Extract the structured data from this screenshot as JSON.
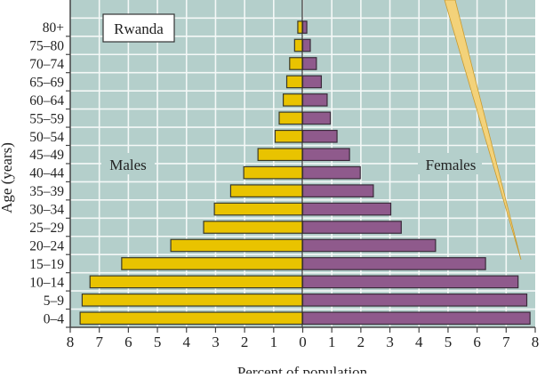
{
  "chart_data": {
    "type": "bar",
    "orientation": "horizontal-population-pyramid",
    "title": "Rwanda",
    "xlabel": "Percent of population",
    "ylabel": "Age (years)",
    "categories": [
      "0–4",
      "5–9",
      "10–14",
      "15–19",
      "20–24",
      "25–29",
      "30–34",
      "35–39",
      "40–44",
      "45–49",
      "50–54",
      "55–59",
      "60–64",
      "65–69",
      "70–74",
      "75–80",
      "80+"
    ],
    "series": [
      {
        "name": "Males",
        "side": "left",
        "color": "#e9c300",
        "values": [
          7.66,
          7.59,
          7.32,
          6.23,
          4.54,
          3.41,
          3.04,
          2.48,
          2.03,
          1.54,
          0.95,
          0.81,
          0.67,
          0.55,
          0.45,
          0.28,
          0.17
        ]
      },
      {
        "name": "Females",
        "side": "right",
        "color": "#8f5a8c",
        "values": [
          7.82,
          7.71,
          7.41,
          6.29,
          4.57,
          3.39,
          3.03,
          2.43,
          1.98,
          1.61,
          1.18,
          0.95,
          0.84,
          0.64,
          0.47,
          0.26,
          0.14
        ]
      }
    ],
    "xlim": [
      -8,
      8
    ],
    "xticks": [
      "8",
      "7",
      "6",
      "5",
      "4",
      "3",
      "2",
      "1",
      "0",
      "1",
      "2",
      "3",
      "4",
      "5",
      "6",
      "7",
      "8"
    ],
    "grid": true,
    "background": "#b4cfcb"
  }
}
